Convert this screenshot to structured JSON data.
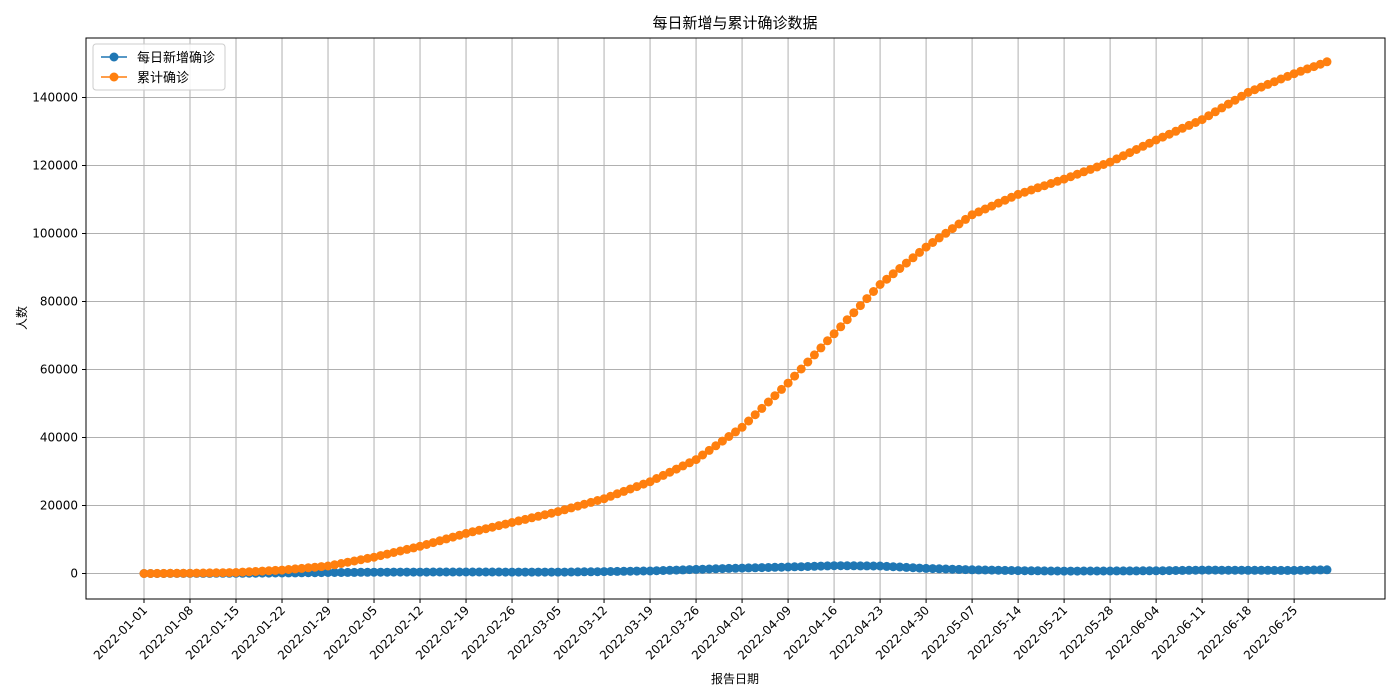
{
  "chart_data": {
    "type": "line",
    "title": "每日新增与累计确诊数据",
    "xlabel": "报告日期",
    "ylabel": "人数",
    "x_start": "2022-01-01",
    "x_end": "2022-06-30",
    "ylim": [
      -7500,
      157500
    ],
    "yticks": [
      0,
      20000,
      40000,
      60000,
      80000,
      100000,
      120000,
      140000
    ],
    "xticks": [
      "2022-01-01",
      "2022-01-08",
      "2022-01-15",
      "2022-01-22",
      "2022-01-29",
      "2022-02-05",
      "2022-02-12",
      "2022-02-19",
      "2022-02-26",
      "2022-03-05",
      "2022-03-12",
      "2022-03-19",
      "2022-03-26",
      "2022-04-02",
      "2022-04-09",
      "2022-04-16",
      "2022-04-23",
      "2022-04-30",
      "2022-05-07",
      "2022-05-14",
      "2022-05-21",
      "2022-05-28",
      "2022-06-04",
      "2022-06-11",
      "2022-06-18",
      "2022-06-25"
    ],
    "grid": true,
    "legend_position": "top-left",
    "series": [
      {
        "name": "每日新增确诊",
        "color": "#1f77b4",
        "marker": "circle",
        "anchors": [
          [
            "2022-01-01",
            0
          ],
          [
            "2022-01-15",
            60
          ],
          [
            "2022-01-22",
            150
          ],
          [
            "2022-01-29",
            280
          ],
          [
            "2022-02-05",
            380
          ],
          [
            "2022-02-12",
            420
          ],
          [
            "2022-02-19",
            450
          ],
          [
            "2022-02-26",
            420
          ],
          [
            "2022-03-05",
            400
          ],
          [
            "2022-03-12",
            550
          ],
          [
            "2022-03-19",
            750
          ],
          [
            "2022-03-26",
            1200
          ],
          [
            "2022-04-02",
            1600
          ],
          [
            "2022-04-09",
            1900
          ],
          [
            "2022-04-16",
            2300
          ],
          [
            "2022-04-23",
            2200
          ],
          [
            "2022-04-30",
            1500
          ],
          [
            "2022-05-07",
            1100
          ],
          [
            "2022-05-14",
            850
          ],
          [
            "2022-05-21",
            700
          ],
          [
            "2022-05-28",
            750
          ],
          [
            "2022-06-04",
            800
          ],
          [
            "2022-06-11",
            1000
          ],
          [
            "2022-06-18",
            950
          ],
          [
            "2022-06-25",
            900
          ],
          [
            "2022-06-30",
            1100
          ]
        ]
      },
      {
        "name": "累计确诊",
        "color": "#ff7f0e",
        "marker": "circle",
        "anchors": [
          [
            "2022-01-01",
            0
          ],
          [
            "2022-01-08",
            100
          ],
          [
            "2022-01-15",
            300
          ],
          [
            "2022-01-22",
            1000
          ],
          [
            "2022-01-29",
            2200
          ],
          [
            "2022-02-05",
            4800
          ],
          [
            "2022-02-12",
            8000
          ],
          [
            "2022-02-19",
            11800
          ],
          [
            "2022-02-26",
            15000
          ],
          [
            "2022-03-05",
            18200
          ],
          [
            "2022-03-12",
            22000
          ],
          [
            "2022-03-19",
            27000
          ],
          [
            "2022-03-26",
            33500
          ],
          [
            "2022-04-02",
            43000
          ],
          [
            "2022-04-09",
            56000
          ],
          [
            "2022-04-16",
            70500
          ],
          [
            "2022-04-23",
            85000
          ],
          [
            "2022-04-30",
            96000
          ],
          [
            "2022-05-07",
            105500
          ],
          [
            "2022-05-14",
            111500
          ],
          [
            "2022-05-21",
            116000
          ],
          [
            "2022-05-28",
            121000
          ],
          [
            "2022-06-04",
            127500
          ],
          [
            "2022-06-11",
            133500
          ],
          [
            "2022-06-18",
            141500
          ],
          [
            "2022-06-25",
            147000
          ],
          [
            "2022-06-30",
            150500
          ]
        ]
      }
    ]
  }
}
